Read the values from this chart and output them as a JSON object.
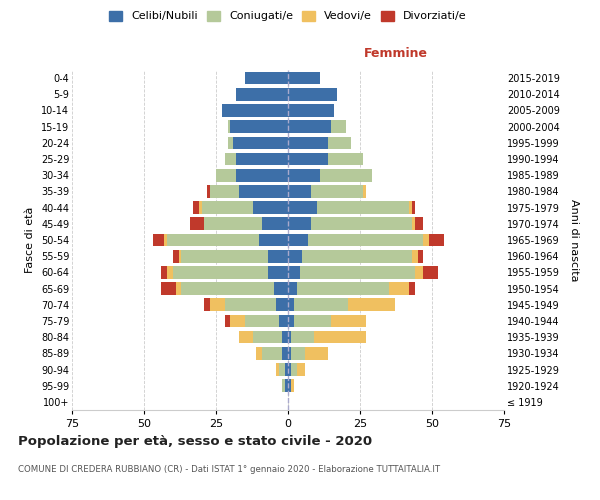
{
  "age_groups": [
    "100+",
    "95-99",
    "90-94",
    "85-89",
    "80-84",
    "75-79",
    "70-74",
    "65-69",
    "60-64",
    "55-59",
    "50-54",
    "45-49",
    "40-44",
    "35-39",
    "30-34",
    "25-29",
    "20-24",
    "15-19",
    "10-14",
    "5-9",
    "0-4"
  ],
  "birth_years": [
    "≤ 1919",
    "1920-1924",
    "1925-1929",
    "1930-1934",
    "1935-1939",
    "1940-1944",
    "1945-1949",
    "1950-1954",
    "1955-1959",
    "1960-1964",
    "1965-1969",
    "1970-1974",
    "1975-1979",
    "1980-1984",
    "1985-1989",
    "1990-1994",
    "1995-1999",
    "2000-2004",
    "2005-2009",
    "2010-2014",
    "2015-2019"
  ],
  "male": {
    "celibe": [
      0,
      1,
      1,
      2,
      2,
      3,
      4,
      5,
      7,
      7,
      10,
      9,
      12,
      17,
      18,
      18,
      19,
      20,
      23,
      18,
      15
    ],
    "coniugato": [
      0,
      1,
      2,
      7,
      10,
      12,
      18,
      32,
      33,
      30,
      32,
      20,
      18,
      10,
      7,
      4,
      2,
      1,
      0,
      0,
      0
    ],
    "vedovo": [
      0,
      0,
      1,
      2,
      5,
      5,
      5,
      2,
      2,
      1,
      1,
      0,
      1,
      0,
      0,
      0,
      0,
      0,
      0,
      0,
      0
    ],
    "divorziato": [
      0,
      0,
      0,
      0,
      0,
      2,
      2,
      5,
      2,
      2,
      4,
      5,
      2,
      1,
      0,
      0,
      0,
      0,
      0,
      0,
      0
    ]
  },
  "female": {
    "nubile": [
      0,
      1,
      1,
      1,
      1,
      2,
      2,
      3,
      4,
      5,
      7,
      8,
      10,
      8,
      11,
      14,
      14,
      15,
      16,
      17,
      11
    ],
    "coniugata": [
      0,
      0,
      2,
      5,
      8,
      13,
      19,
      32,
      40,
      38,
      40,
      35,
      32,
      18,
      18,
      12,
      8,
      5,
      0,
      0,
      0
    ],
    "vedova": [
      0,
      1,
      3,
      8,
      18,
      12,
      16,
      7,
      3,
      2,
      2,
      1,
      1,
      1,
      0,
      0,
      0,
      0,
      0,
      0,
      0
    ],
    "divorziata": [
      0,
      0,
      0,
      0,
      0,
      0,
      0,
      2,
      5,
      2,
      5,
      3,
      1,
      0,
      0,
      0,
      0,
      0,
      0,
      0,
      0
    ]
  },
  "colors": {
    "celibe": "#3d6fa8",
    "coniugato": "#b5c99a",
    "vedovo": "#f0c060",
    "divorziato": "#c0392b"
  },
  "xlim": 75,
  "title": "Popolazione per età, sesso e stato civile - 2020",
  "subtitle": "COMUNE DI CREDERA RUBBIANO (CR) - Dati ISTAT 1° gennaio 2020 - Elaborazione TUTTAITALIA.IT",
  "ylabel_left": "Fasce di età",
  "ylabel_right": "Anni di nascita",
  "xlabel_right": "Femmine",
  "legend_labels": [
    "Celibi/Nubili",
    "Coniugati/e",
    "Vedovi/e",
    "Divorziati/e"
  ],
  "background_color": "#ffffff",
  "grid_color": "#cccccc"
}
